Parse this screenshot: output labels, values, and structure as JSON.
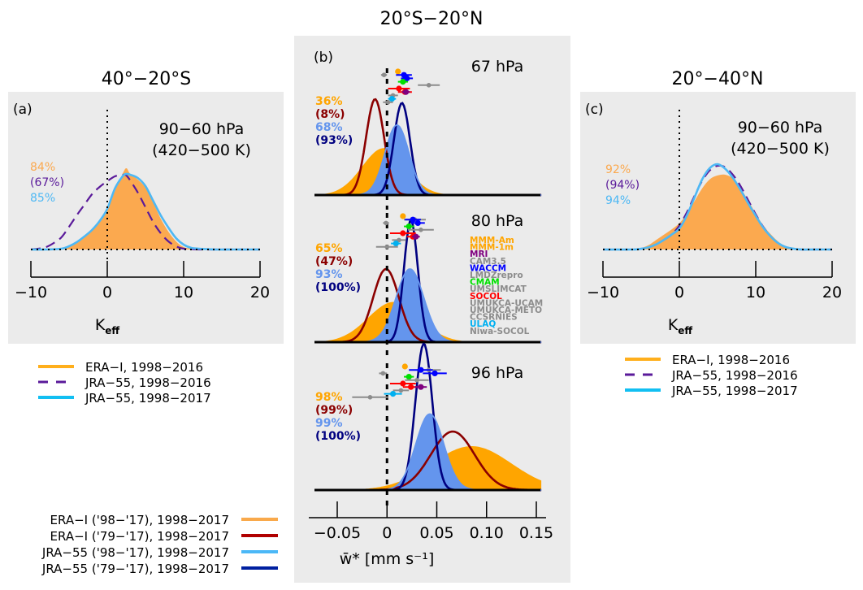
{
  "figure": {
    "colors": {
      "panel_bg": "#ebebeb",
      "era_light": "#fba94f",
      "era_orange": "#ffa500",
      "jra55_9816": "#5a1a9a",
      "jra55_light": "#4eb8f4",
      "era_dark": "#8b0000",
      "jra_blue_fill": "#6495ed",
      "jra_navy": "#000080",
      "leg_era_9817": "#f9a94b",
      "leg_era_7917": "#b00000",
      "leg_jra_9817": "#4bb8f7",
      "leg_jra_7917": "#0020a0"
    }
  },
  "chart_data": [
    {
      "id": "a",
      "type": "area",
      "panel_label": "(a)",
      "title": "40°−20°S",
      "annotation": [
        "90−60 hPa",
        "(420−500 K)"
      ],
      "xlabel": "K",
      "xlabel_sub": "eff",
      "xlim": [
        -10,
        20
      ],
      "xticks": [
        -10,
        0,
        10,
        20
      ],
      "xtick_labels": [
        "−10",
        "0",
        "10",
        "20"
      ],
      "percentages": [
        {
          "text": "84%",
          "color": "#fba94f"
        },
        {
          "text": "(67%)",
          "color": "#5a1a9a"
        },
        {
          "text": "85%",
          "color": "#4eb8f4"
        }
      ],
      "series": [
        {
          "name": "ERA-I, 1998−2016",
          "style": "filled",
          "color": "#fba94f",
          "x": [
            -10,
            -8,
            -6,
            -5,
            -4,
            -3,
            -2,
            -1,
            0,
            1,
            2,
            2.5,
            3,
            4,
            5,
            6,
            7,
            8,
            9,
            10,
            11,
            12,
            14,
            16,
            18,
            20
          ],
          "y": [
            0,
            0,
            0.01,
            0.03,
            0.08,
            0.16,
            0.25,
            0.35,
            0.5,
            0.72,
            0.93,
            1.0,
            0.93,
            0.86,
            0.76,
            0.58,
            0.38,
            0.22,
            0.1,
            0.03,
            0.01,
            0,
            0,
            0,
            0,
            0
          ]
        },
        {
          "name": "JRA-55, 1998−2016",
          "style": "dashed",
          "color": "#5a1a9a",
          "x": [
            -10,
            -9,
            -8,
            -7,
            -6,
            -5,
            -4,
            -3,
            -2,
            -1,
            0,
            1,
            2,
            2.5,
            3,
            4,
            5,
            6,
            7,
            8,
            9,
            10,
            12,
            14,
            16,
            18,
            20
          ],
          "y": [
            0,
            0.01,
            0.03,
            0.08,
            0.15,
            0.28,
            0.42,
            0.55,
            0.68,
            0.77,
            0.84,
            0.9,
            0.92,
            0.91,
            0.85,
            0.7,
            0.52,
            0.34,
            0.2,
            0.1,
            0.04,
            0.01,
            0,
            0,
            0,
            0,
            0
          ]
        },
        {
          "name": "JRA-55, 1998−2017",
          "style": "line",
          "color": "#4eb8f4",
          "x": [
            -10,
            -8,
            -6,
            -5,
            -4,
            -3,
            -2,
            -1,
            0,
            1,
            2,
            2.5,
            3,
            4,
            5,
            6,
            7,
            8,
            9,
            10,
            11,
            12,
            14,
            16,
            18,
            20
          ],
          "y": [
            0,
            0,
            0.01,
            0.04,
            0.09,
            0.16,
            0.24,
            0.35,
            0.5,
            0.75,
            0.9,
            0.93,
            0.92,
            0.88,
            0.78,
            0.6,
            0.42,
            0.27,
            0.14,
            0.06,
            0.02,
            0.01,
            0,
            0,
            0,
            0
          ]
        }
      ]
    },
    {
      "id": "b",
      "type": "area",
      "panel_label": "(b)",
      "title": "20°S−20°N",
      "xlabel": "w̄* [mm s⁻¹]",
      "xlim": [
        -0.07,
        0.155
      ],
      "xticks": [
        -0.05,
        0,
        0.05,
        0.1,
        0.15
      ],
      "xtick_labels": [
        "−0.05",
        "0",
        "0.05",
        "0.10",
        "0.15"
      ],
      "models_legend": [
        {
          "name": "MMM-Am",
          "color": "#ffa500"
        },
        {
          "name": "MMM-1m",
          "color": "#ffa500"
        },
        {
          "name": "MRI",
          "color": "#800080"
        },
        {
          "name": "CAM3.5",
          "color": "#8c8c8c"
        },
        {
          "name": "WACCM",
          "color": "#0000ff"
        },
        {
          "name": "LMDZrepro",
          "color": "#8c8c8c"
        },
        {
          "name": "CMAM",
          "color": "#00e000"
        },
        {
          "name": "UMSLIMCAT",
          "color": "#8c8c8c"
        },
        {
          "name": "SOCOL",
          "color": "#ff0000"
        },
        {
          "name": "UMUKCA-UCAM",
          "color": "#8c8c8c"
        },
        {
          "name": "UMUKCA-METO",
          "color": "#8c8c8c"
        },
        {
          "name": "CCSRNIES",
          "color": "#8c8c8c"
        },
        {
          "name": "ULAQ",
          "color": "#00b0f0"
        },
        {
          "name": "Niwa-SOCOL",
          "color": "#8c8c8c"
        }
      ],
      "subpanels": [
        {
          "level": "67 hPa",
          "percentages": [
            {
              "text": "36%",
              "color": "#ffa500"
            },
            {
              "text": "(8%)",
              "color": "#8b0000"
            },
            {
              "text": "68%",
              "color": "#6495ed"
            },
            {
              "text": "(93%)",
              "color": "#000080"
            }
          ],
          "series": [
            {
              "name": "ERA-I ('98−'17)",
              "style": "filled",
              "color": "#ffa500",
              "mean": -0.003,
              "sd": 0.022,
              "peak": 0.49
            },
            {
              "name": "JRA-55 ('98−'17)",
              "style": "filled",
              "color": "#6495ed",
              "mean": 0.01,
              "sd": 0.012,
              "peak": 0.73
            },
            {
              "name": "ERA-I ('79−'17)",
              "style": "line",
              "color": "#8b0000",
              "mean": -0.012,
              "sd": 0.009,
              "peak": 1.0
            },
            {
              "name": "JRA-55 ('79−'17)",
              "style": "line",
              "color": "#000080",
              "mean": 0.015,
              "sd": 0.008,
              "peak": 0.96
            }
          ],
          "model_points": [
            {
              "color": "#ffa500",
              "x": 0.011,
              "err": 0.0,
              "row": 0
            },
            {
              "color": "#8c8c8c",
              "x": -0.003,
              "err": 0.003,
              "row": 1
            },
            {
              "color": "#0000ff",
              "x": 0.017,
              "err": 0.008,
              "row": 1
            },
            {
              "color": "#0000ff",
              "x": 0.02,
              "err": 0.006,
              "row": 2
            },
            {
              "color": "#00e000",
              "x": 0.016,
              "err": 0.005,
              "row": 3
            },
            {
              "color": "#8c8c8c",
              "x": 0.042,
              "err": 0.011,
              "row": 4
            },
            {
              "color": "#ff0000",
              "x": 0.012,
              "err": 0.011,
              "row": 5
            },
            {
              "color": "#ff0000",
              "x": 0.018,
              "err": 0.007,
              "row": 6
            },
            {
              "color": "#800080",
              "x": 0.019,
              "err": 0.004,
              "row": 6
            },
            {
              "color": "#8c8c8c",
              "x": 0.006,
              "err": 0.005,
              "row": 7
            },
            {
              "color": "#00b0f0",
              "x": 0.005,
              "err": 0.004,
              "row": 8
            },
            {
              "color": "#8c8c8c",
              "x": 0.001,
              "err": 0.005,
              "row": 9
            }
          ]
        },
        {
          "level": "80 hPa",
          "percentages": [
            {
              "text": "65%",
              "color": "#ffa500"
            },
            {
              "text": "(47%)",
              "color": "#8b0000"
            },
            {
              "text": "93%",
              "color": "#6495ed"
            },
            {
              "text": "(100%)",
              "color": "#000080"
            }
          ],
          "series": [
            {
              "name": "ERA-I ('98−'17)",
              "style": "filled",
              "color": "#ffa500",
              "mean": 0.007,
              "sd": 0.026,
              "peak": 0.33
            },
            {
              "name": "JRA-55 ('98−'17)",
              "style": "filled",
              "color": "#6495ed",
              "mean": 0.023,
              "sd": 0.014,
              "peak": 0.6
            },
            {
              "name": "ERA-I ('79−'17)",
              "style": "line",
              "color": "#8b0000",
              "mean": -0.001,
              "sd": 0.013,
              "peak": 0.6
            },
            {
              "name": "JRA-55 ('79−'17)",
              "style": "line",
              "color": "#000080",
              "mean": 0.024,
              "sd": 0.007,
              "peak": 1.0
            }
          ],
          "model_points": [
            {
              "color": "#ffa500",
              "x": 0.016,
              "err": 0.0,
              "row": 0
            },
            {
              "color": "#8c8c8c",
              "x": 0.028,
              "err": 0.011,
              "row": 1
            },
            {
              "color": "#8c8c8c",
              "x": -0.001,
              "err": 0.003,
              "row": 2
            },
            {
              "color": "#0000ff",
              "x": 0.026,
              "err": 0.008,
              "row": 1
            },
            {
              "color": "#0000ff",
              "x": 0.031,
              "err": 0.007,
              "row": 2
            },
            {
              "color": "#00e000",
              "x": 0.022,
              "err": 0.005,
              "row": 3
            },
            {
              "color": "#8c8c8c",
              "x": 0.034,
              "err": 0.013,
              "row": 4
            },
            {
              "color": "#ff0000",
              "x": 0.016,
              "err": 0.013,
              "row": 5
            },
            {
              "color": "#ff0000",
              "x": 0.026,
              "err": 0.006,
              "row": 6
            },
            {
              "color": "#800080",
              "x": 0.029,
              "err": 0.004,
              "row": 6
            },
            {
              "color": "#8c8c8c",
              "x": 0.012,
              "err": 0.007,
              "row": 7
            },
            {
              "color": "#00b0f0",
              "x": 0.009,
              "err": 0.005,
              "row": 8
            },
            {
              "color": "#8c8c8c",
              "x": 0.0,
              "err": 0.011,
              "row": 9
            }
          ]
        },
        {
          "level": "96 hPa",
          "percentages": [
            {
              "text": "98%",
              "color": "#ffa500"
            },
            {
              "text": "(99%)",
              "color": "#8b0000"
            },
            {
              "text": "99%",
              "color": "#6495ed"
            },
            {
              "text": "(100%)",
              "color": "#000080"
            }
          ],
          "series": [
            {
              "name": "ERA-I ('98−'17)",
              "style": "filled",
              "color": "#ffa500",
              "mean": 0.085,
              "sd": 0.04,
              "peak": 0.3
            },
            {
              "name": "JRA-55 ('98−'17)",
              "style": "filled",
              "color": "#6495ed",
              "mean": 0.043,
              "sd": 0.014,
              "peak": 0.52
            },
            {
              "name": "ERA-I ('79−'17)",
              "style": "line",
              "color": "#8b0000",
              "mean": 0.066,
              "sd": 0.022,
              "peak": 0.4
            },
            {
              "name": "JRA-55 ('79−'17)",
              "style": "line",
              "color": "#000080",
              "mean": 0.037,
              "sd": 0.0085,
              "peak": 1.0
            }
          ],
          "model_points": [
            {
              "color": "#ffa500",
              "x": 0.018,
              "err": 0.0,
              "row": 0
            },
            {
              "color": "#8c8c8c",
              "x": 0.042,
              "err": 0.012,
              "row": 1
            },
            {
              "color": "#8c8c8c",
              "x": -0.004,
              "err": 0.004,
              "row": 2
            },
            {
              "color": "#0000ff",
              "x": 0.034,
              "err": 0.012,
              "row": 1
            },
            {
              "color": "#0000ff",
              "x": 0.048,
              "err": 0.012,
              "row": 2
            },
            {
              "color": "#00e000",
              "x": 0.022,
              "err": 0.005,
              "row": 3
            },
            {
              "color": "#8c8c8c",
              "x": 0.03,
              "err": 0.012,
              "row": 4
            },
            {
              "color": "#ff0000",
              "x": 0.016,
              "err": 0.013,
              "row": 5
            },
            {
              "color": "#ff0000",
              "x": 0.024,
              "err": 0.008,
              "row": 6
            },
            {
              "color": "#800080",
              "x": 0.034,
              "err": 0.006,
              "row": 6
            },
            {
              "color": "#8c8c8c",
              "x": 0.014,
              "err": 0.008,
              "row": 7
            },
            {
              "color": "#00b0f0",
              "x": 0.006,
              "err": 0.009,
              "row": 8
            },
            {
              "color": "#8c8c8c",
              "x": -0.017,
              "err": 0.018,
              "row": 9
            }
          ]
        }
      ]
    },
    {
      "id": "c",
      "type": "area",
      "panel_label": "(c)",
      "title": "20°−40°N",
      "annotation": [
        "90−60 hPa",
        "(420−500 K)"
      ],
      "xlabel": "K",
      "xlabel_sub": "eff",
      "xlim": [
        -10,
        20
      ],
      "xticks": [
        -10,
        0,
        10,
        20
      ],
      "xtick_labels": [
        "−10",
        "0",
        "10",
        "20"
      ],
      "percentages": [
        {
          "text": "92%",
          "color": "#fba94f"
        },
        {
          "text": "(94%)",
          "color": "#5a1a9a"
        },
        {
          "text": "94%",
          "color": "#4eb8f4"
        }
      ],
      "series": [
        {
          "name": "ERA-I, 1998−2016",
          "style": "filled",
          "color": "#fba94f",
          "x": [
            -10,
            -6,
            -5,
            -4,
            -3,
            -2,
            -1,
            0,
            1,
            2,
            3,
            4,
            5,
            6,
            7,
            8,
            9,
            10,
            11,
            12,
            13,
            14,
            15,
            16,
            18,
            20
          ],
          "y": [
            0,
            0,
            0.02,
            0.06,
            0.13,
            0.2,
            0.27,
            0.35,
            0.48,
            0.65,
            0.82,
            0.94,
            0.99,
            1.0,
            0.95,
            0.82,
            0.66,
            0.48,
            0.32,
            0.2,
            0.1,
            0.04,
            0.01,
            0,
            0,
            0
          ]
        },
        {
          "name": "JRA-55, 1998−2016",
          "style": "dashed",
          "color": "#5a1a9a",
          "x": [
            -10,
            -6,
            -5,
            -4,
            -3,
            -2,
            -1,
            0,
            1,
            2,
            3,
            4,
            5,
            6,
            7,
            8,
            9,
            10,
            11,
            12,
            13,
            14,
            15,
            16,
            18,
            20
          ],
          "y": [
            0,
            0,
            0.01,
            0.03,
            0.07,
            0.13,
            0.2,
            0.32,
            0.5,
            0.72,
            0.92,
            1.06,
            1.12,
            1.1,
            1.0,
            0.85,
            0.66,
            0.47,
            0.3,
            0.17,
            0.08,
            0.03,
            0.01,
            0,
            0,
            0
          ]
        },
        {
          "name": "JRA-55, 1998−2017",
          "style": "line",
          "color": "#4eb8f4",
          "x": [
            -10,
            -6,
            -5,
            -4,
            -3,
            -2,
            -1,
            0,
            1,
            2,
            3,
            4,
            5,
            6,
            7,
            8,
            9,
            10,
            11,
            12,
            13,
            14,
            15,
            16,
            18,
            20
          ],
          "y": [
            0,
            0,
            0.01,
            0.03,
            0.07,
            0.13,
            0.2,
            0.28,
            0.46,
            0.7,
            0.94,
            1.09,
            1.14,
            1.08,
            0.96,
            0.8,
            0.62,
            0.45,
            0.29,
            0.17,
            0.08,
            0.03,
            0.01,
            0,
            0,
            0
          ]
        }
      ]
    }
  ],
  "legends": {
    "top": [
      {
        "label": "ERA−I, 1998−2016",
        "style": "solid",
        "color": "#ffaf1c"
      },
      {
        "label": "JRA−55, 1998−2016",
        "style": "dashed",
        "color": "#5a1a9a"
      },
      {
        "label": "JRA−55, 1998−2017",
        "style": "solid",
        "color": "#12bff2"
      }
    ],
    "bottom": [
      {
        "label": "ERA−I ('98−'17), 1998−2017",
        "color": "#f9a94b"
      },
      {
        "label": "ERA−I ('79−'17), 1998−2017",
        "color": "#b00000"
      },
      {
        "label": "JRA−55 ('98−'17), 1998−2017",
        "color": "#4bb8f7"
      },
      {
        "label": "JRA−55 ('79−'17), 1998−2017",
        "color": "#0020a0"
      }
    ]
  }
}
